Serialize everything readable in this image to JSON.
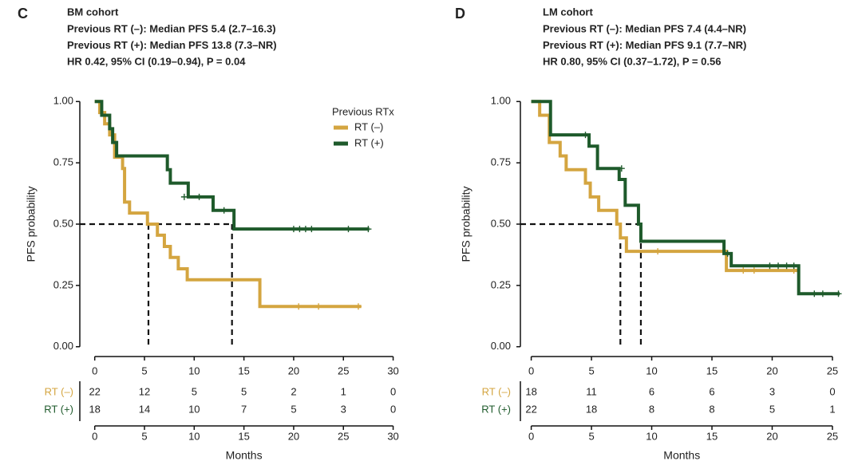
{
  "chart_data": [
    {
      "type": "km",
      "panel": "C",
      "title": "BM cohort",
      "subtitle": [
        "Previous RT (–): Median PFS 5.4 (2.7–16.3)",
        "Previous RT (+): Median PFS 13.8 (7.3–NR)",
        "HR 0.42, 95% CI (0.19–0.94), P = 0.04"
      ],
      "ylabel": "PFS probability",
      "xlabel": "Months",
      "legend_title": "Previous RTx",
      "xlim": [
        -1.5,
        31.8
      ],
      "ylim": [
        -0.04,
        1.04
      ],
      "xticks": [
        0,
        5,
        10,
        15,
        20,
        25,
        30
      ],
      "yticks": [
        {
          "value": 0,
          "label": "0.00"
        },
        {
          "value": 0.25,
          "label": "0.25"
        },
        {
          "value": 0.5,
          "label": "0.50"
        },
        {
          "value": 0.75,
          "label": "0.75"
        },
        {
          "value": 1,
          "label": "1.00"
        }
      ],
      "median_x": [
        5.4,
        13.8
      ],
      "median_y": 0.5,
      "series": [
        {
          "name": "RT (–)",
          "color": "#d4a540",
          "x": [
            0,
            0.5,
            1.0,
            1.5,
            2.0,
            2.8,
            3.0,
            3.5,
            5.3,
            6.3,
            7.0,
            7.6,
            8.4,
            9.3,
            16.6,
            26.8
          ],
          "values": [
            1.0,
            0.955,
            0.909,
            0.864,
            0.773,
            0.727,
            0.59,
            0.545,
            0.5,
            0.455,
            0.409,
            0.364,
            0.318,
            0.273,
            0.164,
            0.164
          ],
          "censor_x": [
            20.5,
            22.5,
            26.5
          ],
          "censor_values": [
            0.164,
            0.164,
            0.164
          ],
          "at_risk": [
            22,
            12,
            5,
            5,
            2,
            1,
            0
          ]
        },
        {
          "name": "RT (+)",
          "color": "#1e5a2b",
          "x": [
            0,
            0.7,
            1.5,
            1.8,
            2.2,
            7.3,
            7.6,
            9.4,
            11.9,
            14.0,
            27.6
          ],
          "values": [
            1.0,
            0.944,
            0.889,
            0.833,
            0.778,
            0.722,
            0.667,
            0.611,
            0.556,
            0.48,
            0.48
          ],
          "censor_x": [
            9.0,
            10.5,
            13.0,
            20.0,
            20.6,
            21.2,
            21.8,
            25.5,
            27.5
          ],
          "censor_values": [
            0.611,
            0.611,
            0.556,
            0.48,
            0.48,
            0.48,
            0.48,
            0.48,
            0.48
          ],
          "at_risk": [
            18,
            14,
            10,
            7,
            5,
            3,
            0
          ]
        }
      ]
    },
    {
      "type": "km",
      "panel": "D",
      "title": "LM cohort",
      "subtitle": [
        "Previous RT (–): Median PFS 7.4 (4.4–NR)",
        "Previous RT (+): Median PFS 9.1 (7.7–NR)",
        "HR 0.80, 95% CI (0.37–1.72), P = 0.56"
      ],
      "ylabel": "PFS probability",
      "xlabel": "Months",
      "xlim": [
        -0.9,
        25.6
      ],
      "ylim": [
        -0.04,
        1.04
      ],
      "xticks": [
        0,
        5,
        10,
        15,
        20,
        25
      ],
      "yticks": [
        {
          "value": 0,
          "label": "0.00"
        },
        {
          "value": 0.25,
          "label": "0.25"
        },
        {
          "value": 0.5,
          "label": "0.50"
        },
        {
          "value": 0.75,
          "label": "0.75"
        },
        {
          "value": 1,
          "label": "1.00"
        }
      ],
      "median_x": [
        7.4,
        9.1
      ],
      "median_y": 0.5,
      "series": [
        {
          "name": "RT (–)",
          "color": "#d4a540",
          "x": [
            0,
            0.7,
            1.5,
            2.4,
            2.9,
            4.5,
            4.9,
            5.6,
            7.1,
            7.4,
            7.9,
            16.2,
            22.2
          ],
          "values": [
            1.0,
            0.944,
            0.833,
            0.778,
            0.722,
            0.667,
            0.611,
            0.556,
            0.5,
            0.444,
            0.389,
            0.311,
            0.311
          ],
          "censor_x": [
            10.5,
            17.6,
            18.5,
            21.8
          ],
          "censor_values": [
            0.389,
            0.311,
            0.311,
            0.311
          ],
          "at_risk": [
            18,
            11,
            6,
            6,
            3,
            0
          ]
        },
        {
          "name": "RT (+)",
          "color": "#1e5a2b",
          "x": [
            0,
            1.6,
            4.8,
            5.5,
            7.3,
            7.8,
            8.9,
            9.1,
            16.0,
            16.6,
            22.2,
            25.6
          ],
          "values": [
            1.0,
            0.864,
            0.818,
            0.727,
            0.682,
            0.577,
            0.5,
            0.43,
            0.38,
            0.33,
            0.216,
            0.216
          ],
          "censor_x": [
            4.5,
            7.5,
            16.3,
            19.8,
            20.5,
            21.2,
            21.8,
            23.5,
            24.2,
            25.5
          ],
          "censor_values": [
            0.864,
            0.727,
            0.38,
            0.33,
            0.33,
            0.33,
            0.33,
            0.216,
            0.216,
            0.216
          ],
          "at_risk": [
            22,
            18,
            8,
            8,
            5,
            1
          ]
        }
      ]
    }
  ]
}
